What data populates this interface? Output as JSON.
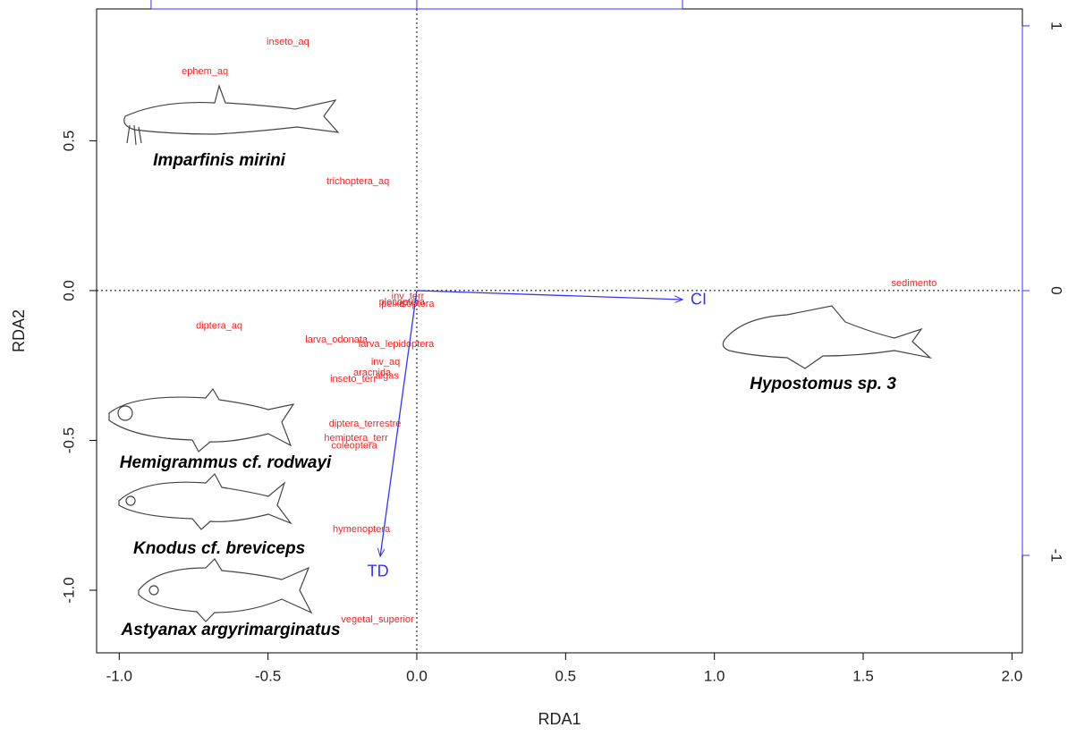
{
  "chart_data": {
    "type": "biplot",
    "x_label": "RDA1",
    "y_label": "RDA2",
    "xlim": [
      -1.076,
      2.035
    ],
    "ylim": [
      -1.209,
      0.94
    ],
    "xticks": [
      {
        "value": -1,
        "label": "-1.0"
      },
      -0.5,
      {
        "value": 0,
        "label": "0.0"
      },
      0.5,
      {
        "value": 1,
        "label": "1.0"
      },
      1.5,
      {
        "value": 2,
        "label": "2.0"
      }
    ],
    "yticks": [
      0.5,
      {
        "value": 0,
        "label": "0.0"
      },
      -0.5,
      {
        "value": -1,
        "label": "-1.0"
      }
    ],
    "x2lim": [
      -1.205,
      2.279
    ],
    "x2ticks": [
      -1,
      0,
      1
    ],
    "y2lim": [
      -1.368,
      1.064
    ],
    "y2ticks": [
      1,
      0,
      -1
    ],
    "secondary_axis_color": "#3333ff",
    "points": {
      "color": "#ff2020",
      "labels": [
        "inseto_aq",
        "ephem_aq",
        "trichoptera_aq",
        "sedimento",
        "diptera_aq",
        "larva_odonata",
        "larva_lepidoptera",
        "inv_aq",
        "aracnida",
        "algas",
        "inseto_terr",
        "diptera_terrestre",
        "hemiptera_terr",
        "coleoptera",
        "hymenoptera",
        "vegetal_superior",
        "inv_terr",
        "plecoptera",
        "peixe",
        "isoptera"
      ],
      "x": [
        -0.433,
        -0.712,
        -0.198,
        1.671,
        -0.664,
        -0.27,
        -0.069,
        -0.105,
        -0.15,
        -0.1,
        -0.213,
        -0.174,
        -0.204,
        -0.21,
        -0.186,
        -0.132,
        -0.03,
        -0.05,
        -0.08,
        0.0
      ],
      "y": [
        0.83,
        0.731,
        0.364,
        0.024,
        -0.119,
        -0.164,
        -0.179,
        -0.239,
        -0.275,
        -0.285,
        -0.296,
        -0.445,
        -0.493,
        -0.519,
        -0.797,
        -1.099,
        -0.02,
        -0.04,
        -0.045,
        -0.045
      ]
    },
    "arrows": {
      "color": "#3333ff",
      "labels": [
        "CI",
        "TD"
      ],
      "x": [
        0.893,
        -0.123
      ],
      "y": [
        -0.03,
        -0.887
      ]
    },
    "species": {
      "labels": [
        "Imparfinis mirini",
        "Hypostomus sp. 3",
        "Hemigrammus cf. rodwayi",
        "Knodus cf. breviceps",
        "Astyanax argyrimarginatus"
      ],
      "x": [
        -0.664,
        1.365,
        -0.643,
        -0.664,
        -0.625
      ],
      "y": [
        0.433,
        -0.313,
        -0.576,
        -0.863,
        -1.134
      ]
    }
  }
}
